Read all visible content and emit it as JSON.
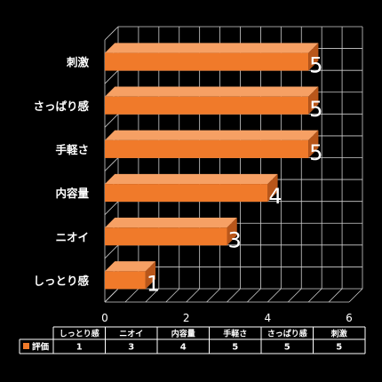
{
  "chart_data": {
    "type": "bar",
    "orientation": "horizontal",
    "three_d": true,
    "categories": [
      "しっとり感",
      "ニオイ",
      "内容量",
      "手軽さ",
      "さっぱり感",
      "刺激"
    ],
    "series": [
      {
        "name": "評価",
        "values": [
          1,
          3,
          4,
          5,
          5,
          5
        ],
        "color": "#F07A2A"
      }
    ],
    "data_labels": [
      "1",
      "3",
      "4",
      "5",
      "5",
      "5"
    ],
    "x_ticks": [
      "0",
      "2",
      "4",
      "6"
    ],
    "xlim": [
      0,
      6
    ],
    "grid": true,
    "legend": "data-table-below",
    "data_table": {
      "headers": [
        "しっとり感",
        "ニオイ",
        "内容量",
        "手軽さ",
        "さっぱり感",
        "刺激"
      ],
      "row_label": "評価",
      "values": [
        "1",
        "3",
        "4",
        "5",
        "5",
        "5"
      ]
    },
    "colors": {
      "background": "#000000",
      "bar_front": "#F07A2A",
      "bar_top": "#F6A064",
      "bar_side": "#B8561A",
      "grid": "#CFCFCF",
      "text": "#FFFFFF"
    }
  }
}
